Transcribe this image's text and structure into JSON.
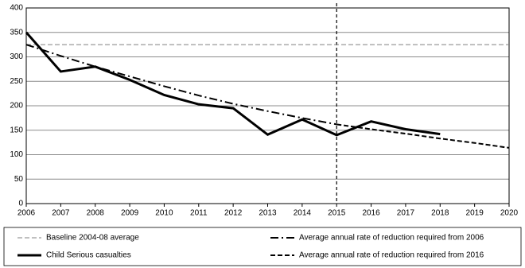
{
  "chart_data": {
    "type": "line",
    "x": [
      2006,
      2007,
      2008,
      2009,
      2010,
      2011,
      2012,
      2013,
      2014,
      2015,
      2016,
      2017,
      2018,
      2019,
      2020
    ],
    "xlim": [
      2006,
      2020
    ],
    "xticks": [
      2006,
      2007,
      2008,
      2009,
      2010,
      2011,
      2012,
      2013,
      2014,
      2015,
      2016,
      2017,
      2018,
      2019,
      2020
    ],
    "ylim": [
      0,
      400
    ],
    "yticks": [
      0,
      50,
      100,
      150,
      200,
      250,
      300,
      350,
      400
    ],
    "grid": true,
    "vline_x": 2015,
    "legend": "bottom",
    "series": [
      {
        "name": "Baseline 2004-08 average",
        "color": "#808080",
        "dash": "dashed",
        "width": 1,
        "values": [
          325,
          325,
          325,
          325,
          325,
          325,
          325,
          325,
          325,
          325,
          325,
          325,
          325,
          325,
          325
        ]
      },
      {
        "name": "Child Serious casualties",
        "color": "#000000",
        "dash": "solid",
        "width": 3,
        "values": [
          350,
          270,
          280,
          253,
          222,
          203,
          195,
          141,
          172,
          140,
          168,
          152,
          142,
          null,
          null
        ]
      },
      {
        "name": "Average annual rate of reduction required from 2006",
        "color": "#000000",
        "dash": "dash-dot",
        "width": 2,
        "values": [
          325,
          302,
          280,
          260,
          240,
          221,
          204,
          189,
          175,
          162,
          null,
          null,
          null,
          null,
          null
        ]
      },
      {
        "name": "Average annual rate of reduction required from 2016",
        "color": "#000000",
        "dash": "dashed",
        "width": 2,
        "values": [
          null,
          null,
          null,
          null,
          null,
          null,
          null,
          null,
          null,
          162,
          152,
          143,
          133,
          124,
          114
        ]
      }
    ]
  }
}
